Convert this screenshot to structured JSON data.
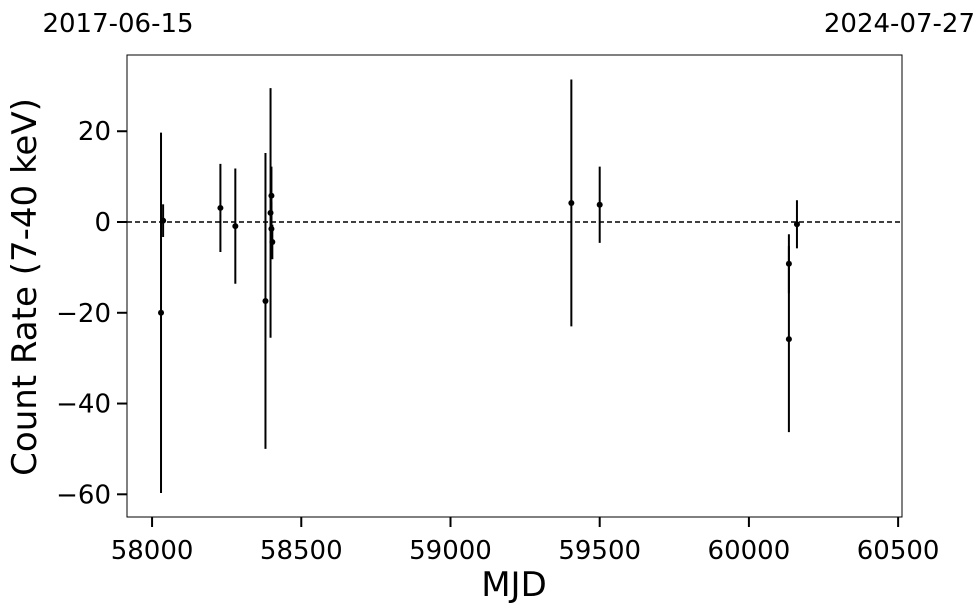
{
  "chart_data": {
    "type": "scatter",
    "xlabel": "MJD",
    "ylabel": "Count Rate (7-40 keV)",
    "annotations": [
      "2017-06-15",
      "2024-07-27"
    ],
    "x": [
      58030,
      58037,
      58229,
      58279,
      58380,
      58397,
      58400,
      58400,
      58403,
      59405,
      59500,
      60134,
      60134,
      60161
    ],
    "series": [
      {
        "color": "#000000",
        "values": [
          -20,
          0.3,
          3.1,
          -0.9,
          -17.4,
          2,
          5.8,
          -1.5,
          -4.4,
          4.2,
          3.8,
          -9.2,
          -25.8,
          -0.5
        ],
        "errors": [
          39.7,
          3.6,
          9.7,
          12.7,
          32.6,
          27.5,
          6.4,
          6,
          3.8,
          27.2,
          8.4,
          6.5,
          20.5,
          5.3
        ]
      }
    ],
    "xlim": [
      57916,
      60513
    ],
    "ylim": [
      -65,
      36.8
    ],
    "xticks": [
      58000,
      58500,
      59000,
      59500,
      60000,
      60500
    ],
    "yticks": [
      {
        "value": -60,
        "label": "−60"
      },
      {
        "value": -40,
        "label": "−40"
      },
      {
        "value": -20,
        "label": "−20"
      },
      0,
      20
    ],
    "hline": 0
  }
}
